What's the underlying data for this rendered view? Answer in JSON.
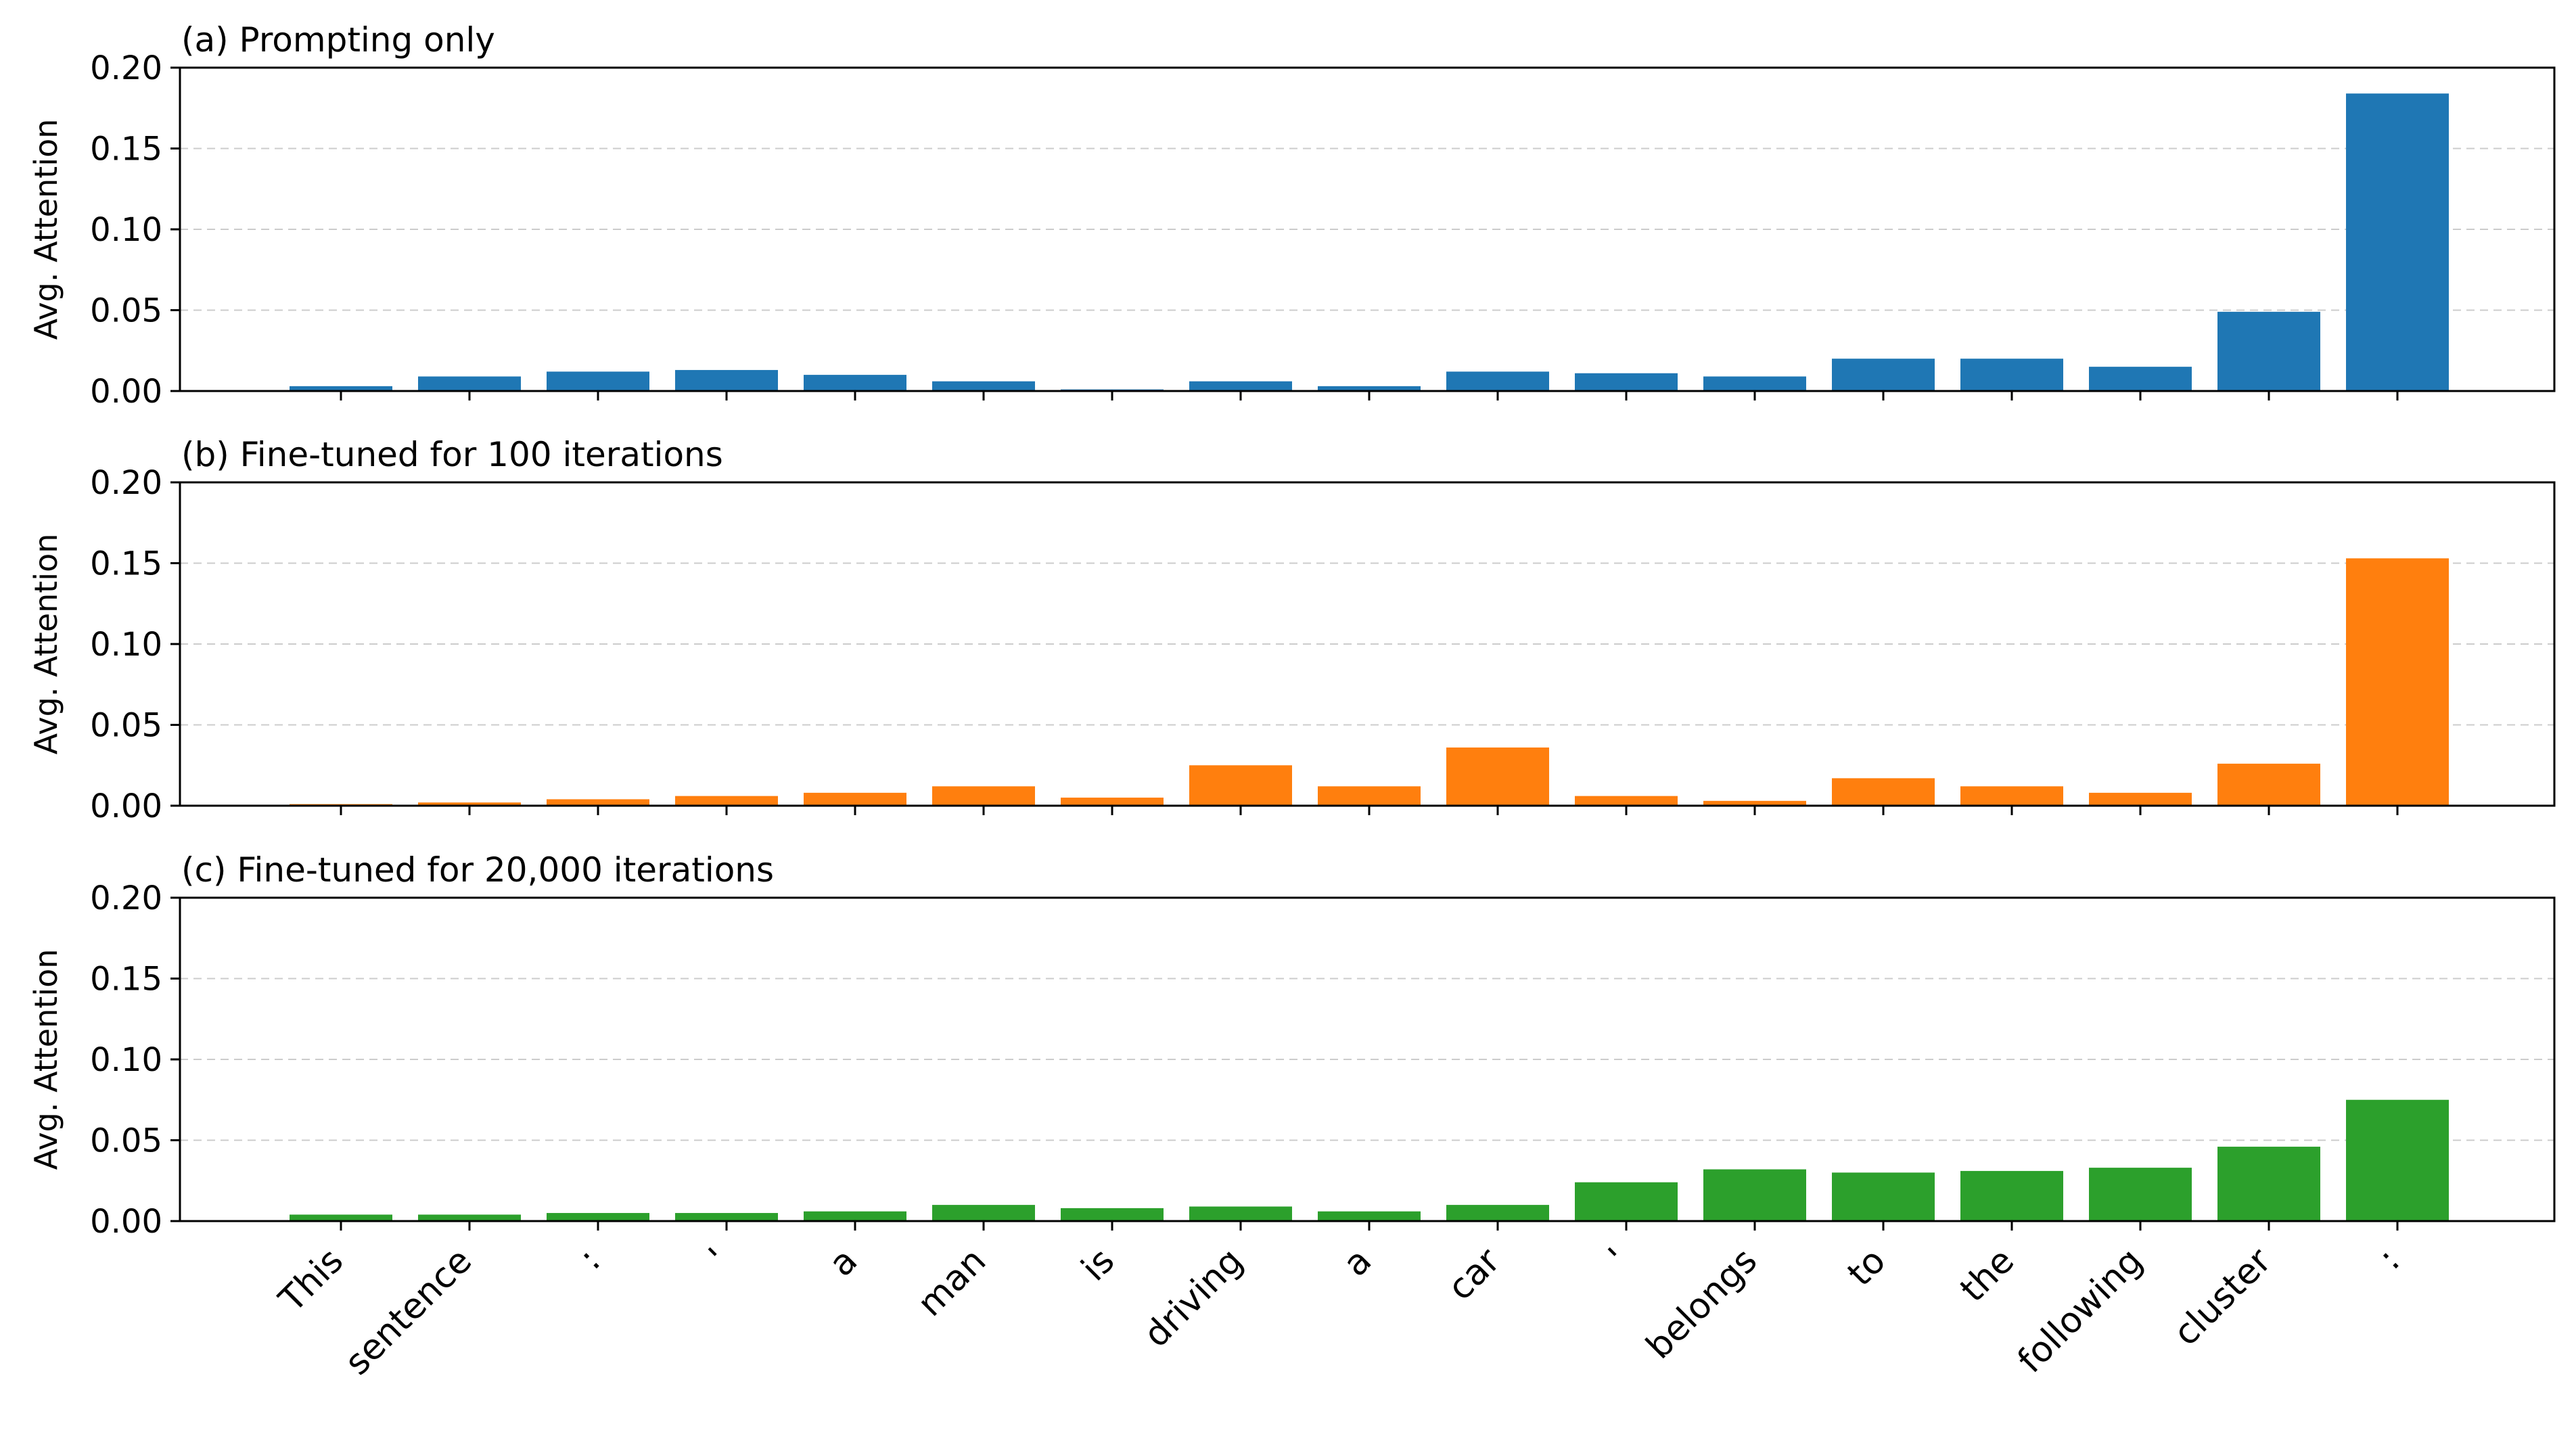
{
  "chart_data": {
    "type": "bar",
    "categories": [
      "This",
      "sentence",
      ":",
      "'",
      "a",
      "man",
      "is",
      "driving",
      "a",
      "car",
      "'",
      "belongs",
      "to",
      "the",
      "following",
      "cluster",
      ":"
    ],
    "ylabel": "Avg. Attention",
    "ylim": [
      0,
      0.2
    ],
    "yticks": [
      "0.00",
      "0.05",
      "0.10",
      "0.15",
      "0.20"
    ],
    "grid": "horizontal dashed",
    "panels": [
      {
        "title": "(a) Prompting only",
        "color": "#1f77b4",
        "values": [
          0.003,
          0.009,
          0.012,
          0.013,
          0.01,
          0.006,
          0.001,
          0.006,
          0.003,
          0.012,
          0.011,
          0.009,
          0.02,
          0.02,
          0.015,
          0.049,
          0.184
        ]
      },
      {
        "title": "(b) Fine-tuned for 100 iterations",
        "color": "#ff7f0e",
        "values": [
          0.001,
          0.002,
          0.004,
          0.006,
          0.008,
          0.012,
          0.005,
          0.025,
          0.012,
          0.036,
          0.006,
          0.003,
          0.017,
          0.012,
          0.008,
          0.026,
          0.153
        ]
      },
      {
        "title": "(c) Fine-tuned for 20,000 iterations",
        "color": "#2ca02c",
        "values": [
          0.004,
          0.004,
          0.005,
          0.005,
          0.006,
          0.01,
          0.008,
          0.009,
          0.006,
          0.01,
          0.024,
          0.032,
          0.03,
          0.031,
          0.033,
          0.046,
          0.075
        ]
      }
    ]
  }
}
